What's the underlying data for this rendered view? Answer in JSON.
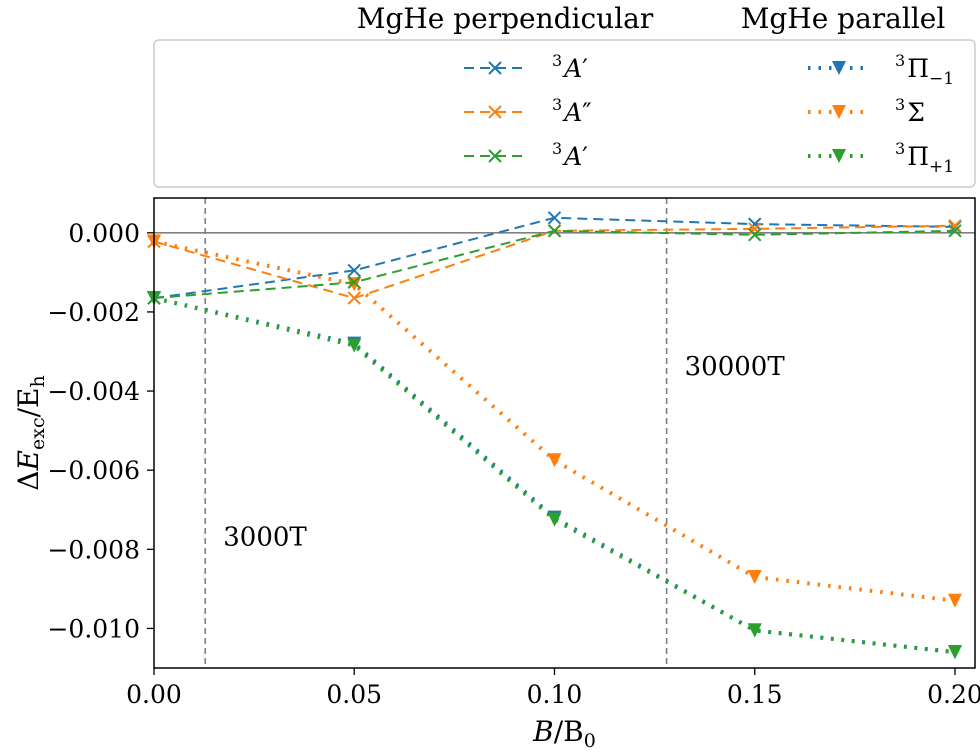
{
  "chart_data": {
    "type": "line",
    "xlabel_main": "B",
    "xlabel_unit": "/B",
    "xlabel_unit_sub": "0",
    "ylabel_main": "ΔE",
    "ylabel_sub": "exc",
    "ylabel_unit": "/E",
    "ylabel_unit_sub": "h",
    "xlim": [
      0.0,
      0.205
    ],
    "ylim": [
      -0.011,
      0.00088
    ],
    "xticks": [
      0.0,
      0.05,
      0.1,
      0.15,
      0.2
    ],
    "xtick_labels": [
      "0.00",
      "0.05",
      "0.10",
      "0.15",
      "0.20"
    ],
    "yticks": [
      0.0,
      -0.002,
      -0.004,
      -0.006,
      -0.008,
      -0.01
    ],
    "ytick_labels": [
      "0.000",
      "−0.002",
      "−0.004",
      "−0.006",
      "−0.008",
      "−0.010"
    ],
    "grid": false,
    "zero_line": 0.0,
    "vertical_lines": [
      {
        "x": 0.0128,
        "label": "3000T",
        "label_y": -0.0079
      },
      {
        "x": 0.128,
        "label": "30000T",
        "label_y": -0.0036
      }
    ],
    "legend_titles": [
      "MgHe perpendicular",
      "MgHe parallel"
    ],
    "legend_placement": "above plot",
    "x": [
      0.0,
      0.05,
      0.1,
      0.15,
      0.2
    ],
    "series": [
      {
        "group": "perpendicular",
        "label_sup": "3",
        "label_main": "A",
        "label_prime": "′",
        "color": "#1f77b4",
        "linestyle": "dashed",
        "marker": "x",
        "values": [
          -0.00165,
          -0.00095,
          0.00038,
          0.00022,
          0.00015
        ]
      },
      {
        "group": "perpendicular",
        "label_sup": "3",
        "label_main": "A",
        "label_prime": "″",
        "color": "#ff7f0e",
        "linestyle": "dashed",
        "marker": "x",
        "values": [
          -0.00022,
          -0.00165,
          5e-05,
          0.0001,
          0.00018
        ]
      },
      {
        "group": "perpendicular",
        "label_sup": "3",
        "label_main": "A",
        "label_prime": "′",
        "color": "#2ca02c",
        "linestyle": "dashed",
        "marker": "x",
        "values": [
          -0.00165,
          -0.00125,
          5e-05,
          -5e-05,
          5e-05
        ]
      },
      {
        "group": "parallel",
        "label_sup": "3",
        "label_main": "Π",
        "label_sub": "−1",
        "color": "#1f77b4",
        "linestyle": "dotted",
        "marker": "v",
        "values": [
          -0.00165,
          -0.0028,
          -0.0072,
          -0.01005,
          -0.0106
        ]
      },
      {
        "group": "parallel",
        "label_sup": "3",
        "label_main": "Σ",
        "label_sub": "",
        "color": "#ff7f0e",
        "linestyle": "dotted",
        "marker": "v",
        "values": [
          -0.00022,
          -0.0013,
          -0.00575,
          -0.0087,
          -0.0093
        ]
      },
      {
        "group": "parallel",
        "label_sup": "3",
        "label_main": "Π",
        "label_sub": "+1",
        "color": "#2ca02c",
        "linestyle": "dotted",
        "marker": "v",
        "values": [
          -0.00165,
          -0.00285,
          -0.00725,
          -0.01005,
          -0.0106
        ]
      }
    ]
  }
}
